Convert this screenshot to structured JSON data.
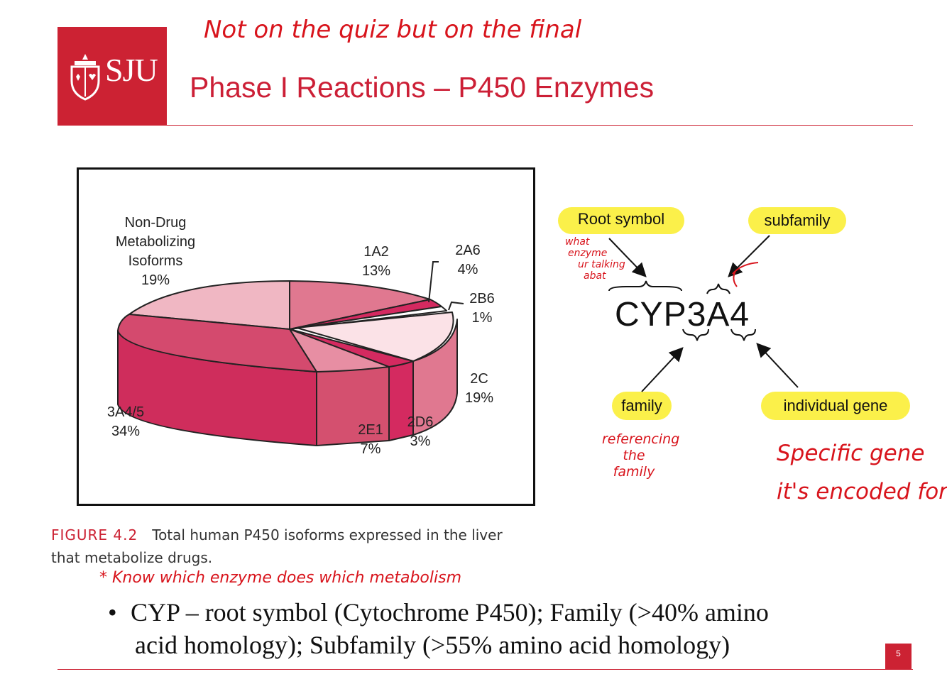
{
  "header": {
    "logo_text": "SJU",
    "title": "Phase I Reactions – P450 Enzymes",
    "handwritten_note": "Not on the quiz but on the final"
  },
  "chart_data": {
    "type": "pie",
    "slices": [
      {
        "label": "Non-Drug Metabolizing Isoforms",
        "value": 19,
        "value_label": "19%"
      },
      {
        "label": "1A2",
        "value": 13,
        "value_label": "13%"
      },
      {
        "label": "2A6",
        "value": 4,
        "value_label": "4%"
      },
      {
        "label": "2B6",
        "value": 1,
        "value_label": "1%"
      },
      {
        "label": "2C",
        "value": 19,
        "value_label": "19%"
      },
      {
        "label": "2D6",
        "value": 3,
        "value_label": "3%"
      },
      {
        "label": "2E1",
        "value": 7,
        "value_label": "7%"
      },
      {
        "label": "3A4/5",
        "value": 34,
        "value_label": "34%"
      }
    ],
    "label_lines": {
      "nondrug": [
        "Non-Drug",
        "Metabolizing",
        "Isoforms",
        "19%"
      ]
    },
    "colors": {
      "light": "#f0b7c3",
      "pink": "#e07890",
      "mid": "#d44a6e",
      "deep": "#cf2d5c",
      "pale": "#fbe2e7",
      "magenta": "#d42a60"
    }
  },
  "caption": {
    "figure_label": "FIGURE 4.2",
    "text_line1": "Total human P450 isoforms expressed in the liver",
    "text_line2": "that metabolize drugs.",
    "handwritten_note": "* Know which enzyme does which metabolism"
  },
  "diagram": {
    "name": "CYP3A4",
    "root_symbol": "Root symbol",
    "subfamily": "subfamily",
    "family": "family",
    "individual_gene": "individual gene",
    "note_root": [
      "what",
      "enzyme",
      "ur talking",
      "abat"
    ],
    "note_family": [
      "referencing",
      "the",
      "family"
    ],
    "note_gene": [
      "Specific gene",
      "it's encoded for"
    ]
  },
  "bullet": {
    "line1": "CYP – root symbol (Cytochrome P450); Family (>40% amino",
    "line2": "acid homology); Subfamily (>55% amino acid homology)"
  },
  "page_number": "5"
}
